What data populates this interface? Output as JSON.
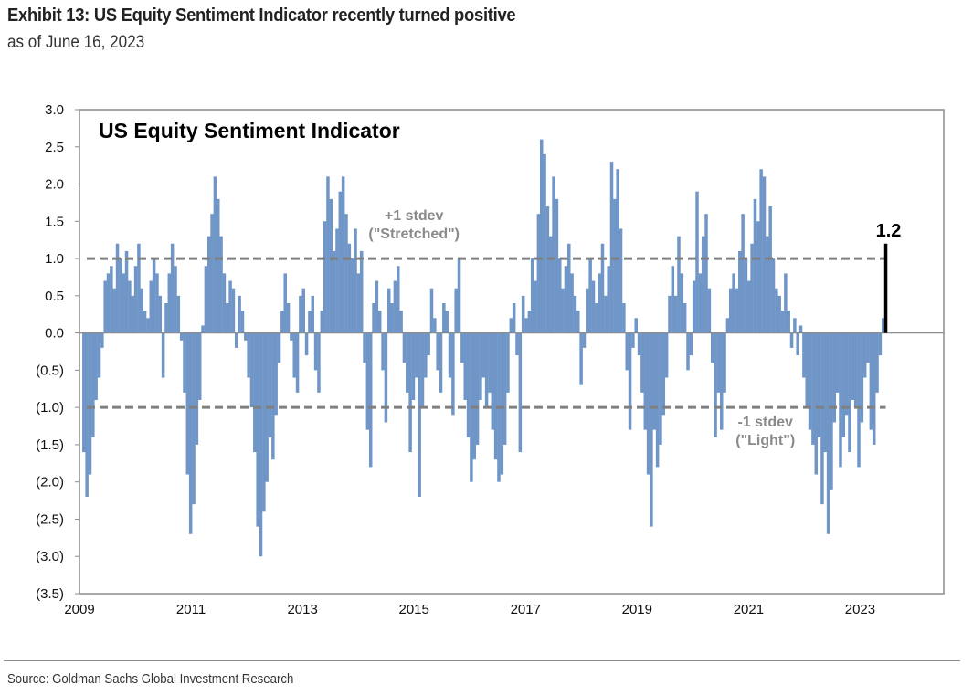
{
  "header": {
    "title": "Exhibit 13: US Equity Sentiment Indicator recently turned positive",
    "subtitle": "as of June 16, 2023"
  },
  "footer": {
    "source": "Source: Goldman Sachs Global Investment Research"
  },
  "colors": {
    "bar": "#7096c8",
    "reference_line": "#7f7f7f",
    "annotation_text": "#8a8a8a",
    "latest_marker": "#000000",
    "axis": "#8c8c8c"
  },
  "chart_data": {
    "type": "bar",
    "title": "US Equity Sentiment Indicator",
    "xlabel": "",
    "ylabel": "",
    "ylim": [
      -3.5,
      3.0
    ],
    "xlim": [
      2009.0,
      2024.5
    ],
    "grid": false,
    "legend": "none",
    "y_ticks": [
      3.0,
      2.5,
      2.0,
      1.5,
      1.0,
      0.5,
      0.0,
      -0.5,
      -1.0,
      -1.5,
      -2.0,
      -2.5,
      -3.0,
      -3.5
    ],
    "y_tick_labels": [
      "3.0",
      "2.5",
      "2.0",
      "1.5",
      "1.0",
      "0.5",
      "0.0",
      "(0.5)",
      "(1.0)",
      "(1.5)",
      "(2.0)",
      "(2.5)",
      "(3.0)",
      "(3.5)"
    ],
    "x_ticks": [
      2009,
      2011,
      2013,
      2015,
      2017,
      2019,
      2021,
      2023
    ],
    "x_tick_labels": [
      "2009",
      "2011",
      "2013",
      "2015",
      "2017",
      "2019",
      "2021",
      "2023"
    ],
    "reference_lines": [
      {
        "value": 1.0,
        "label_line1": "+1 stdev",
        "label_line2": "(\"Stretched\")",
        "label_x": 2015.0
      },
      {
        "value": -1.0,
        "label_line1": "-1 stdev",
        "label_line2": "(\"Light\")",
        "label_x": 2021.3
      }
    ],
    "latest": {
      "x": 2023.46,
      "value": 1.2,
      "label": "1.2"
    },
    "series_start": 2009.05,
    "series_step_years": 0.0417,
    "values": [
      -1.6,
      -2.2,
      -1.9,
      -1.4,
      -0.9,
      -0.6,
      -0.2,
      0.7,
      0.8,
      0.9,
      0.6,
      1.2,
      1.0,
      0.8,
      1.1,
      0.7,
      0.5,
      0.9,
      1.2,
      0.6,
      0.3,
      0.2,
      0.7,
      1.0,
      0.8,
      0.5,
      -0.6,
      0.4,
      0.8,
      1.2,
      0.9,
      0.5,
      -0.1,
      -0.8,
      -1.9,
      -2.7,
      -2.3,
      -1.5,
      -0.9,
      0.1,
      0.9,
      1.3,
      1.6,
      2.1,
      1.8,
      1.3,
      0.8,
      0.4,
      0.7,
      0.6,
      -0.2,
      0.5,
      0.3,
      -0.1,
      -0.6,
      -1.0,
      -1.6,
      -2.6,
      -3.0,
      -2.4,
      -2.0,
      -1.4,
      -1.7,
      -1.1,
      -0.4,
      0.3,
      0.8,
      0.4,
      -0.1,
      -0.6,
      -0.8,
      0.5,
      0.6,
      -0.3,
      0.3,
      0.5,
      -0.5,
      -0.8,
      0.3,
      1.5,
      2.1,
      1.8,
      1.1,
      1.4,
      1.9,
      2.1,
      1.6,
      1.2,
      1.0,
      1.4,
      0.8,
      1.1,
      -0.4,
      -1.3,
      -1.8,
      0.4,
      0.7,
      0.3,
      -0.5,
      -1.2,
      0.6,
      0.4,
      0.7,
      0.9,
      0.3,
      -0.4,
      -0.8,
      -1.6,
      -0.9,
      -0.6,
      -2.2,
      -1.0,
      -0.6,
      -0.3,
      0.6,
      0.2,
      -0.5,
      -0.8,
      0.4,
      0.3,
      -0.6,
      -1.1,
      0.6,
      1.0,
      -0.4,
      -0.9,
      -1.4,
      -2.0,
      -1.7,
      -1.5,
      -0.9,
      -0.6,
      -1.0,
      -0.8,
      -1.3,
      -1.7,
      -2.0,
      -1.9,
      -1.5,
      -0.8,
      0.2,
      0.4,
      -0.3,
      -1.6,
      0.5,
      0.2,
      0.3,
      1.0,
      0.7,
      1.6,
      2.6,
      2.4,
      1.7,
      1.3,
      2.1,
      1.8,
      1.0,
      0.6,
      0.9,
      1.2,
      0.8,
      0.5,
      0.3,
      -0.7,
      -0.2,
      0.6,
      1.0,
      0.7,
      0.4,
      0.8,
      1.2,
      0.5,
      0.9,
      2.3,
      1.8,
      2.2,
      1.4,
      0.4,
      -0.5,
      -1.3,
      -0.2,
      0.2,
      -0.3,
      -0.8,
      -1.3,
      -1.9,
      -2.6,
      -1.3,
      -1.8,
      -1.5,
      -1.1,
      -0.6,
      0.5,
      0.9,
      0.5,
      1.3,
      0.8,
      0.4,
      -0.5,
      -0.3,
      0.7,
      1.9,
      0.8,
      1.3,
      1.6,
      0.6,
      -0.4,
      -1.4,
      -0.8,
      -1.3,
      -0.8,
      0.2,
      0.6,
      0.8,
      0.6,
      1.1,
      1.6,
      1.0,
      0.7,
      1.2,
      1.8,
      1.5,
      2.2,
      2.1,
      1.3,
      1.7,
      1.0,
      0.6,
      0.5,
      0.3,
      0.8,
      0.3,
      -0.2,
      0.2,
      -0.3,
      0.1,
      -0.6,
      -1.0,
      -1.3,
      -1.5,
      -1.9,
      -1.4,
      -2.3,
      -1.6,
      -2.7,
      -2.1,
      -1.2,
      -0.8,
      -1.8,
      -1.4,
      -1.1,
      -1.6,
      -0.9,
      -1.0,
      -1.8,
      -1.2,
      -0.6,
      -0.4,
      -1.3,
      -1.5,
      -0.8,
      -0.3,
      0.2
    ],
    "values_note": "approximate readings of the weekly-style bars, left to right"
  }
}
